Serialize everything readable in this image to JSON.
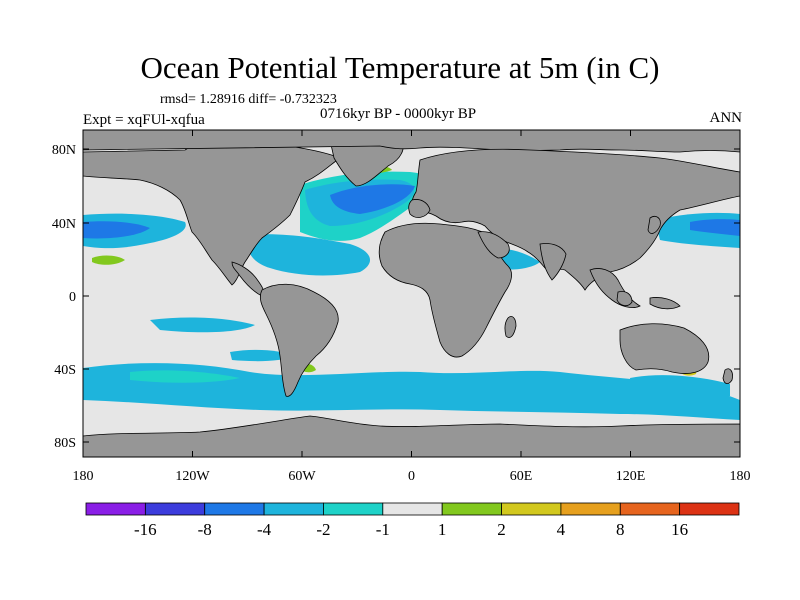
{
  "title": "Ocean Potential Temperature at 5m (in C)",
  "stats": "rmsd= 1.28916 diff= -0.732323",
  "experiment": "Expt = xqFUl-xqfua",
  "period": "0716kyr BP - 0000kyr BP",
  "season": "ANN",
  "axes": {
    "lon_ticks": [
      "180",
      "120W",
      "60W",
      "0",
      "60E",
      "120E",
      "180"
    ],
    "lat_ticks": [
      "80N",
      "40N",
      "0",
      "40S",
      "80S"
    ]
  },
  "colorbar": {
    "labels": [
      "-16",
      "-8",
      "-4",
      "-2",
      "-1",
      "1",
      "2",
      "4",
      "8",
      "16"
    ],
    "colors": [
      "#8a1ee6",
      "#3c3cdc",
      "#1e78e6",
      "#1eb4dc",
      "#1ed2c8",
      "#e6e6e6",
      "#82c81e",
      "#d2c81e",
      "#e6a01e",
      "#e6641e",
      "#dc3214"
    ]
  },
  "colors": {
    "land": "#969696",
    "ocean_neutral": "#e6e6e6",
    "coast": "#000000"
  }
}
